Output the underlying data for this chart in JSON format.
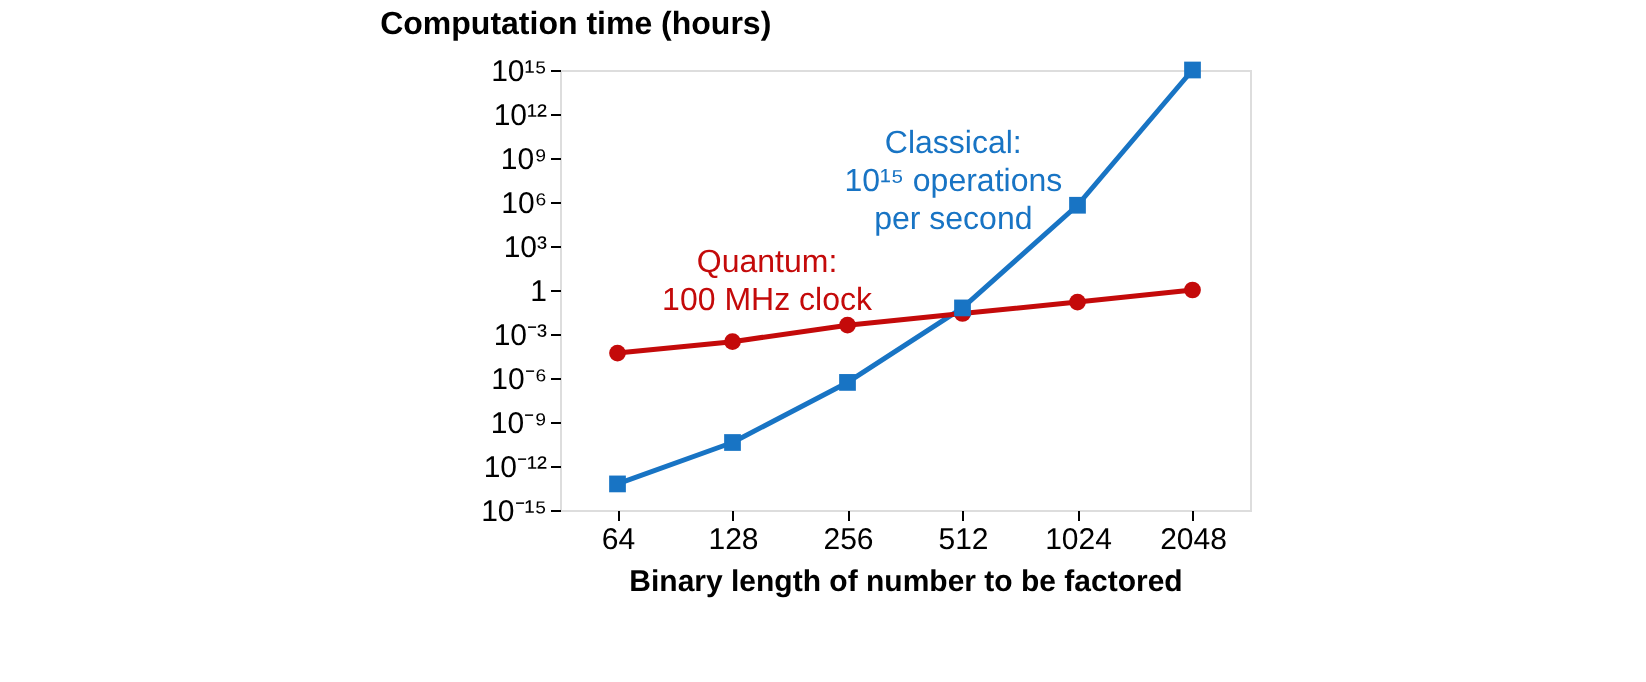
{
  "chart_data": {
    "type": "line",
    "title": "Computation time (hours)",
    "xlabel": "Binary length of number to be factored",
    "categories": [
      "64",
      "128",
      "256",
      "512",
      "1024",
      "2048"
    ],
    "series": [
      {
        "name": "Classical:\n10¹⁵ operations\nper second",
        "color": "#1874c4",
        "marker": "square",
        "values": [
          6e-14,
          4e-11,
          5e-07,
          0.06,
          600000.0,
          1000000000000000.0
        ]
      },
      {
        "name": "Quantum:\n100 MHz clock",
        "color": "#c40a0a",
        "marker": "circle",
        "values": [
          5e-05,
          0.0003,
          0.004,
          0.025,
          0.15,
          1
        ]
      }
    ],
    "log": "y",
    "ylim": [
      1e-15,
      1000000000000000.0
    ],
    "yticks": [
      {
        "value": 1e-15,
        "label": "10⁻¹⁵"
      },
      {
        "value": 1e-12,
        "label": "10⁻¹²"
      },
      {
        "value": 1e-09,
        "label": "10⁻⁹"
      },
      {
        "value": 1e-06,
        "label": "10⁻⁶"
      },
      {
        "value": 0.001,
        "label": "10⁻³"
      },
      1,
      {
        "value": 1000.0,
        "label": "10³"
      },
      {
        "value": 1000000.0,
        "label": "10⁶"
      },
      {
        "value": 1000000000.0,
        "label": "10⁹"
      },
      {
        "value": 1000000000000.0,
        "label": "10¹²"
      },
      {
        "value": 1000000000000000.0,
        "label": "10¹⁵"
      }
    ],
    "grid": false,
    "line_style": "solid"
  }
}
